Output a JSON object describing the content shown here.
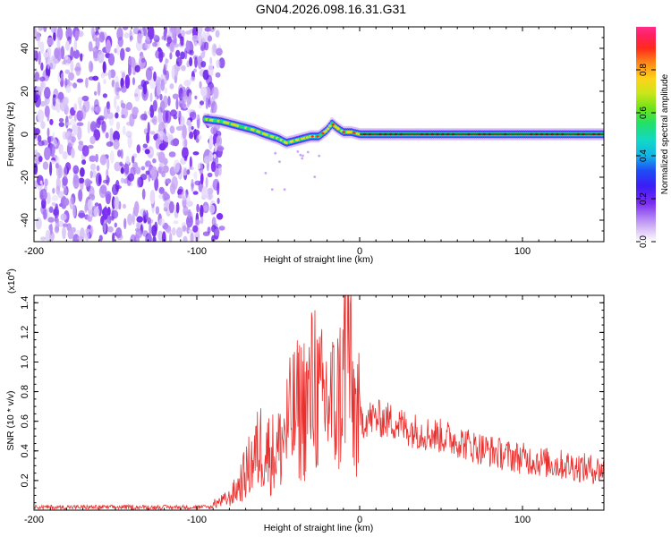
{
  "title": "GN04.2026.098.16.31.G31",
  "colors": {
    "snr_line": "#e8312f",
    "frequency_line": "#000000",
    "noise_purple": "#7a2cf0",
    "noise_light": "#c9a7f5"
  },
  "chart_data": [
    {
      "type": "heatmap",
      "title": "GN04.2026.098.16.31.G31",
      "xlabel": "Height of straight line (km)",
      "ylabel": "Frequency (Hz)",
      "xlim": [
        -200,
        150
      ],
      "ylim": [
        -50,
        50
      ],
      "x_ticks": [
        -200,
        -100,
        0,
        100
      ],
      "y_ticks": [
        -40,
        -20,
        0,
        20,
        40
      ],
      "colorbar": {
        "label": "Normalized spectral amplitude",
        "range": [
          0,
          1
        ],
        "ticks": [
          "0.0",
          "0.2",
          "0.4",
          "0.6",
          "0.8"
        ],
        "tick_values": [
          0.0,
          0.2,
          0.4,
          0.6,
          0.8
        ]
      },
      "noise_region": {
        "x_range": [
          -200,
          -90
        ],
        "amplitude": "0.1-0.2"
      },
      "signal_track": {
        "x": [
          -95,
          -85,
          -75,
          -65,
          -58,
          -50,
          -45,
          -40,
          -35,
          -30,
          -25,
          -20,
          -17,
          -14,
          -10,
          -5,
          0,
          150
        ],
        "frequency": [
          7,
          6,
          4,
          2,
          0,
          -2,
          -4,
          -3,
          -2,
          -1,
          -1,
          2,
          5,
          3,
          1,
          1,
          0,
          0
        ]
      },
      "reference_line": {
        "frequency": 0,
        "x_range": [
          0,
          150
        ]
      }
    },
    {
      "type": "line",
      "xlabel": "Height of straight line (km)",
      "ylabel": "SNR (10 * v/v)",
      "y_multiplier": "(x10",
      "y_multiplier_exponent": "4",
      "xlim": [
        -200,
        150
      ],
      "ylim": [
        0,
        1.45
      ],
      "x_ticks": [
        -200,
        -100,
        0,
        100
      ],
      "y_ticks": [
        0.2,
        0.4,
        0.6,
        0.8,
        1.0,
        1.2,
        1.4
      ],
      "y_tick_labels": [
        "0.2",
        "0.4",
        "0.6",
        "0.8",
        "1.0",
        "1.2",
        "1.4"
      ],
      "series": [
        {
          "name": "SNR",
          "x": [
            -200,
            -180,
            -160,
            -140,
            -120,
            -100,
            -90,
            -80,
            -75,
            -70,
            -65,
            -60,
            -55,
            -50,
            -45,
            -40,
            -35,
            -30,
            -28,
            -25,
            -20,
            -15,
            -10,
            -8,
            -5,
            0,
            5,
            10,
            20,
            30,
            40,
            50,
            60,
            70,
            80,
            90,
            100,
            110,
            120,
            130,
            140,
            150
          ],
          "values": [
            0.02,
            0.02,
            0.02,
            0.02,
            0.02,
            0.02,
            0.04,
            0.08,
            0.15,
            0.25,
            0.35,
            0.45,
            0.38,
            0.4,
            0.55,
            0.65,
            0.7,
            0.75,
            0.95,
            0.7,
            0.75,
            0.7,
            0.85,
            1.45,
            0.75,
            0.6,
            0.62,
            0.62,
            0.6,
            0.55,
            0.52,
            0.5,
            0.47,
            0.43,
            0.4,
            0.37,
            0.35,
            0.33,
            0.31,
            0.3,
            0.28,
            0.27
          ]
        }
      ]
    }
  ]
}
